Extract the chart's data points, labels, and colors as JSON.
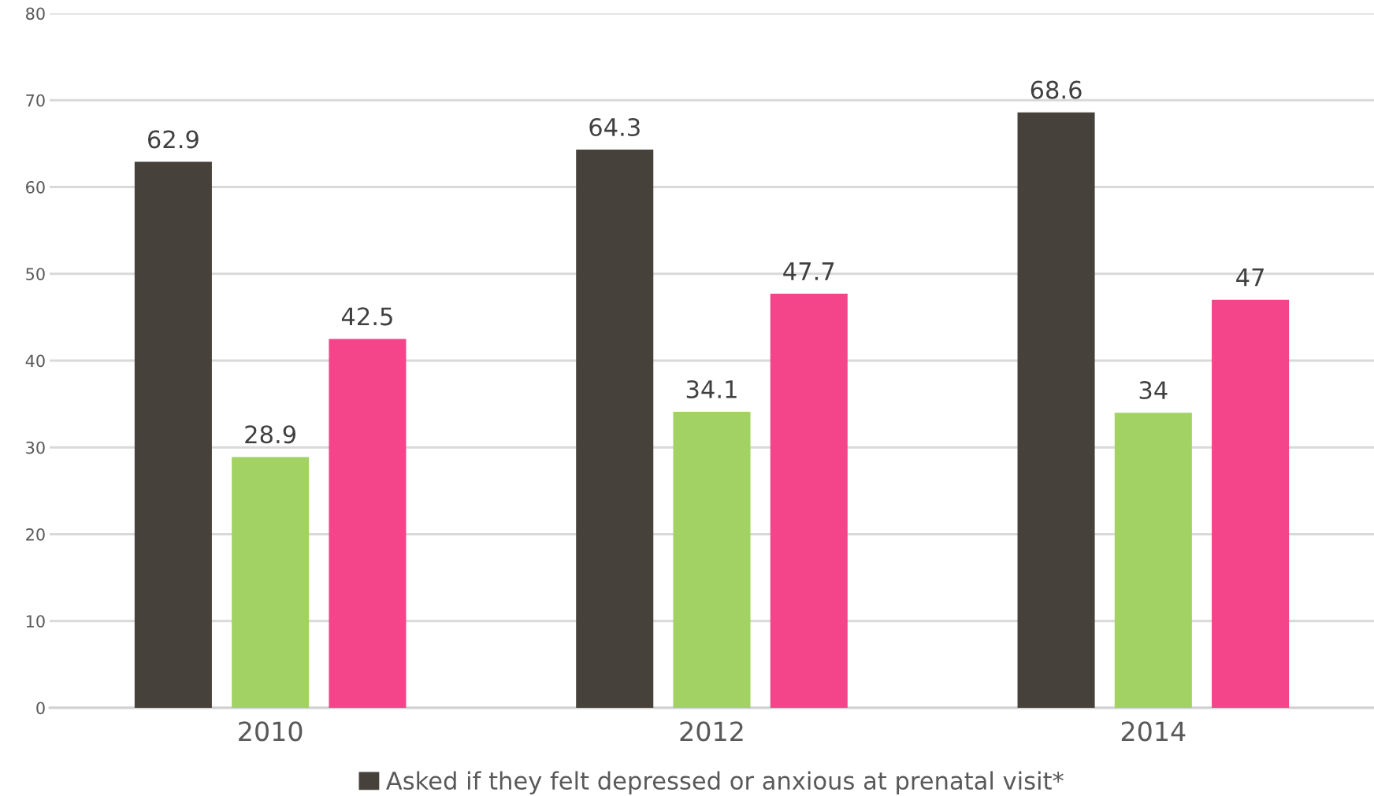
{
  "chart_data": {
    "type": "bar",
    "categories": [
      "2010",
      "2012",
      "2014"
    ],
    "series": [
      {
        "name": "Asked if they felt depressed or anxious at prenatal visit*",
        "color": "#46413b",
        "values": [
          62.9,
          64.3,
          68.6
        ]
      },
      {
        "color": "#a2d264",
        "values": [
          28.9,
          34.1,
          34
        ]
      },
      {
        "color": "#f5458a",
        "values": [
          42.5,
          47.7,
          47
        ]
      }
    ],
    "ylim": [
      0,
      80
    ],
    "yticks": [
      0,
      10,
      20,
      30,
      40,
      50,
      60,
      70,
      80
    ],
    "grid": "y",
    "legend": "bottom",
    "data_labels": true
  }
}
